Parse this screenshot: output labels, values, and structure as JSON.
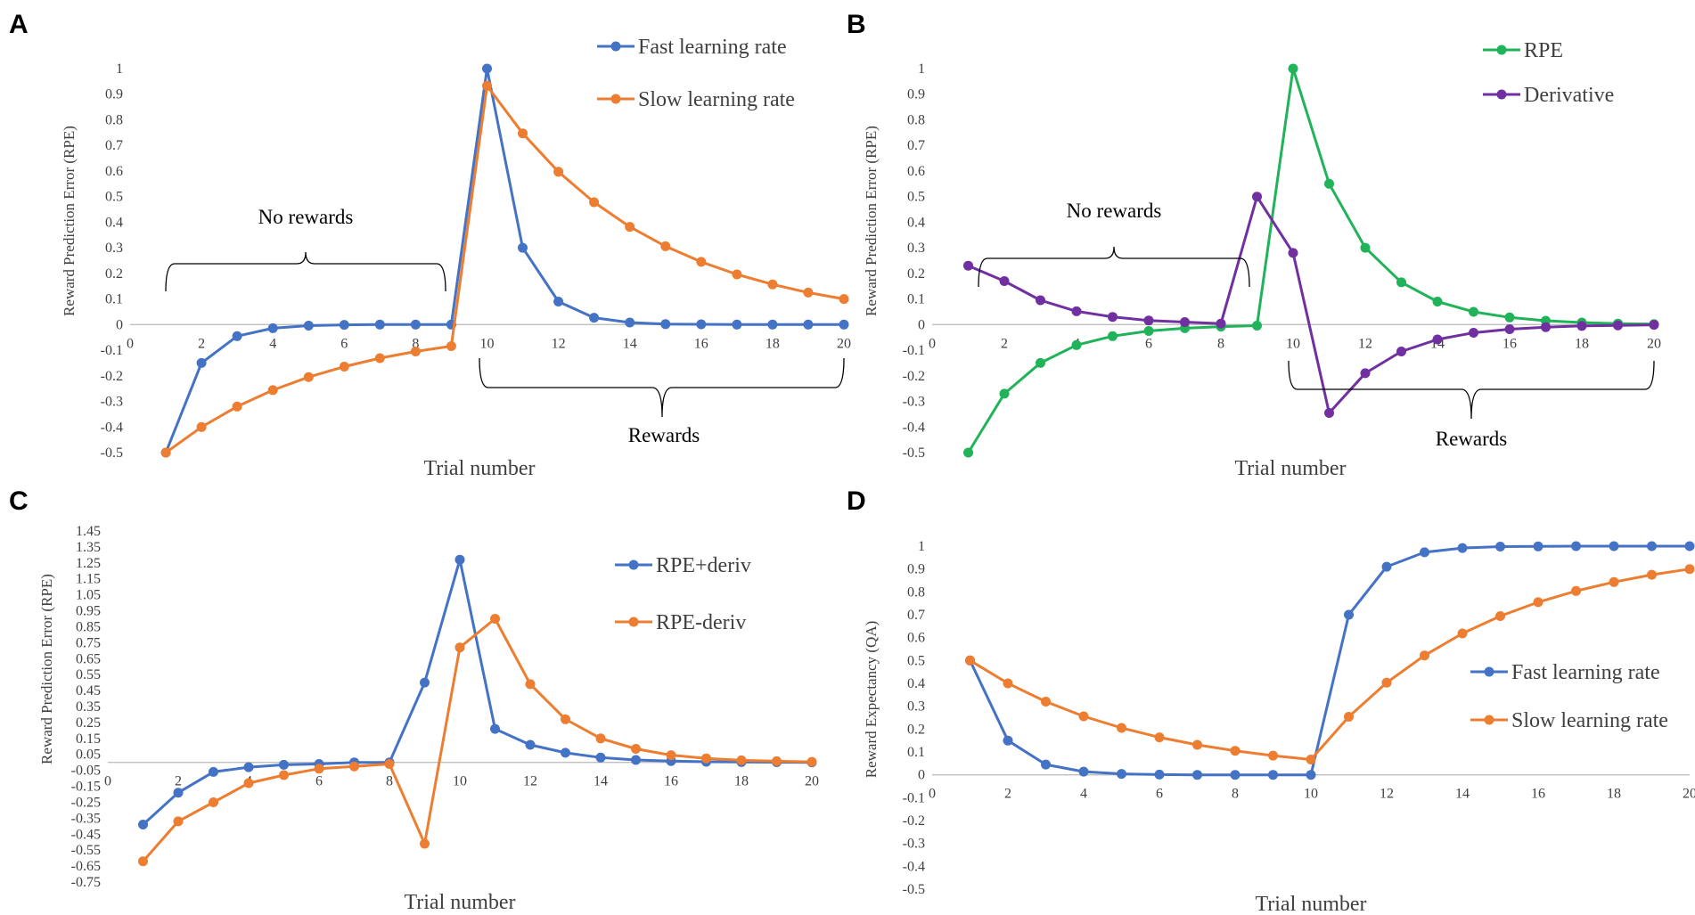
{
  "chart_data": [
    {
      "panel": "A",
      "type": "line",
      "title": "",
      "xlabel": "Trial number",
      "ylabel": "Reward Prediction Error (RPE)",
      "xlim": [
        0,
        20
      ],
      "ylim": [
        -0.5,
        1
      ],
      "xticks": [
        0,
        2,
        4,
        6,
        8,
        10,
        12,
        14,
        16,
        18,
        20
      ],
      "yticks": [
        -0.5,
        -0.4,
        -0.3,
        -0.2,
        -0.1,
        0,
        0.1,
        0.2,
        0.3,
        0.4,
        0.5,
        0.6,
        0.7,
        0.8,
        0.9,
        1
      ],
      "x": [
        1,
        2,
        3,
        4,
        5,
        6,
        7,
        8,
        9,
        10,
        11,
        12,
        13,
        14,
        15,
        16,
        17,
        18,
        19,
        20
      ],
      "series": [
        {
          "name": "Fast learning rate",
          "color": "#4472C4",
          "values": [
            -0.5,
            -0.15,
            -0.045,
            -0.014,
            -0.004,
            -0.001,
            0,
            0,
            0,
            1.0,
            0.3,
            0.09,
            0.027,
            0.008,
            0.002,
            0.001,
            0,
            0,
            0,
            0
          ]
        },
        {
          "name": "Slow learning rate",
          "color": "#ED7D31",
          "values": [
            -0.5,
            -0.4,
            -0.32,
            -0.256,
            -0.205,
            -0.164,
            -0.131,
            -0.105,
            -0.084,
            0.933,
            0.747,
            0.597,
            0.478,
            0.382,
            0.306,
            0.245,
            0.196,
            0.157,
            0.125,
            0.1
          ]
        }
      ],
      "legend": [
        "Fast learning rate",
        "Slow learning rate"
      ],
      "legend_position": "top-right",
      "annotations": [
        "No rewards",
        "Rewards"
      ]
    },
    {
      "panel": "B",
      "type": "line",
      "title": "",
      "xlabel": "Trial number",
      "ylabel": "Reward Prediction Error (RPE)",
      "xlim": [
        0,
        20
      ],
      "ylim": [
        -0.5,
        1
      ],
      "xticks": [
        0,
        2,
        4,
        6,
        8,
        10,
        12,
        14,
        16,
        18,
        20
      ],
      "yticks": [
        -0.5,
        -0.4,
        -0.3,
        -0.2,
        -0.1,
        0,
        0.1,
        0.2,
        0.3,
        0.4,
        0.5,
        0.6,
        0.7,
        0.8,
        0.9,
        1
      ],
      "x": [
        1,
        2,
        3,
        4,
        5,
        6,
        7,
        8,
        9,
        10,
        11,
        12,
        13,
        14,
        15,
        16,
        17,
        18,
        19,
        20
      ],
      "series": [
        {
          "name": "RPE",
          "color": "#21B35A",
          "values": [
            -0.5,
            -0.27,
            -0.15,
            -0.08,
            -0.045,
            -0.025,
            -0.014,
            -0.008,
            -0.004,
            1.0,
            0.55,
            0.3,
            0.165,
            0.09,
            0.05,
            0.028,
            0.015,
            0.008,
            0.004,
            0.002
          ]
        },
        {
          "name": "Derivative",
          "color": "#7030A0",
          "values": [
            0.23,
            0.17,
            0.095,
            0.052,
            0.03,
            0.016,
            0.01,
            0.004,
            0.5,
            0.28,
            -0.345,
            -0.19,
            -0.105,
            -0.058,
            -0.032,
            -0.018,
            -0.01,
            -0.005,
            -0.003,
            -0.001
          ]
        }
      ],
      "legend": [
        "RPE",
        "Derivative"
      ],
      "legend_position": "top-right",
      "annotations": [
        "No rewards",
        "Rewards"
      ]
    },
    {
      "panel": "C",
      "type": "line",
      "title": "",
      "xlabel": "Trial number",
      "ylabel": "Reward Prediction Error (RPE)",
      "xlim": [
        0,
        20
      ],
      "ylim": [
        -0.75,
        1.45
      ],
      "xticks": [
        0,
        2,
        4,
        6,
        8,
        10,
        12,
        14,
        16,
        18,
        20
      ],
      "yticks": [
        -0.75,
        -0.65,
        -0.55,
        -0.45,
        -0.35,
        -0.25,
        -0.15,
        -0.05,
        0.05,
        0.15,
        0.25,
        0.35,
        0.45,
        0.55,
        0.65,
        0.75,
        0.85,
        0.95,
        1.05,
        1.15,
        1.25,
        1.35,
        1.45
      ],
      "x": [
        1,
        2,
        3,
        4,
        5,
        6,
        7,
        8,
        9,
        10,
        11,
        12,
        13,
        14,
        15,
        16,
        17,
        18,
        19,
        20
      ],
      "series": [
        {
          "name": "RPE+deriv",
          "color": "#4472C4",
          "values": [
            -0.39,
            -0.19,
            -0.06,
            -0.03,
            -0.015,
            -0.01,
            0.0,
            0.0,
            0.5,
            1.27,
            0.21,
            0.11,
            0.06,
            0.03,
            0.015,
            0.008,
            0.004,
            0.002,
            0.001,
            0.0
          ]
        },
        {
          "name": "RPE-deriv",
          "color": "#ED7D31",
          "values": [
            -0.62,
            -0.37,
            -0.25,
            -0.13,
            -0.08,
            -0.04,
            -0.025,
            -0.01,
            -0.51,
            0.72,
            0.9,
            0.49,
            0.27,
            0.15,
            0.085,
            0.045,
            0.025,
            0.013,
            0.007,
            0.003
          ]
        }
      ],
      "legend": [
        "RPE+deriv",
        "RPE-deriv"
      ],
      "legend_position": "top-right"
    },
    {
      "panel": "D",
      "type": "line",
      "title": "",
      "xlabel": "Trial number",
      "ylabel": "Reward Expectancy (QA)",
      "xlim": [
        0,
        20
      ],
      "ylim": [
        -0.5,
        1
      ],
      "xticks": [
        0,
        2,
        4,
        6,
        8,
        10,
        12,
        14,
        16,
        18,
        20
      ],
      "yticks": [
        -0.5,
        -0.4,
        -0.3,
        -0.2,
        -0.1,
        0,
        0.1,
        0.2,
        0.3,
        0.4,
        0.5,
        0.6,
        0.7,
        0.8,
        0.9,
        1
      ],
      "x": [
        1,
        2,
        3,
        4,
        5,
        6,
        7,
        8,
        9,
        10,
        11,
        12,
        13,
        14,
        15,
        16,
        17,
        18,
        19,
        20
      ],
      "series": [
        {
          "name": "Fast learning rate",
          "color": "#4472C4",
          "values": [
            0.5,
            0.15,
            0.045,
            0.014,
            0.004,
            0.001,
            0,
            0,
            0,
            0,
            0.7,
            0.91,
            0.973,
            0.992,
            0.998,
            0.999,
            1.0,
            1.0,
            1.0,
            1.0
          ]
        },
        {
          "name": "Slow learning rate",
          "color": "#ED7D31",
          "values": [
            0.5,
            0.4,
            0.32,
            0.256,
            0.205,
            0.164,
            0.131,
            0.105,
            0.084,
            0.067,
            0.254,
            0.403,
            0.522,
            0.618,
            0.694,
            0.755,
            0.804,
            0.843,
            0.875,
            0.9
          ]
        }
      ],
      "legend": [
        "Fast learning rate",
        "Slow learning rate"
      ],
      "legend_position": "right"
    }
  ],
  "panels": [
    {
      "letter": "A",
      "xlabel": "Trial number",
      "ylabel": "Reward Prediction Error (RPE)",
      "legend": [
        "Fast learning rate",
        "Slow learning rate"
      ],
      "annotations": [
        "No rewards",
        "Rewards"
      ]
    },
    {
      "letter": "B",
      "xlabel": "Trial number",
      "ylabel": "Reward Prediction Error (RPE)",
      "legend": [
        "RPE",
        "Derivative"
      ],
      "annotations": [
        "No rewards",
        "Rewards"
      ]
    },
    {
      "letter": "C",
      "xlabel": "Trial number",
      "ylabel": "Reward Prediction Error (RPE)",
      "legend": [
        "RPE+deriv",
        "RPE-deriv"
      ]
    },
    {
      "letter": "D",
      "xlabel": "Trial number",
      "ylabel": "Reward Expectancy (QA)",
      "legend": [
        "Fast learning rate",
        "Slow learning rate"
      ]
    }
  ]
}
